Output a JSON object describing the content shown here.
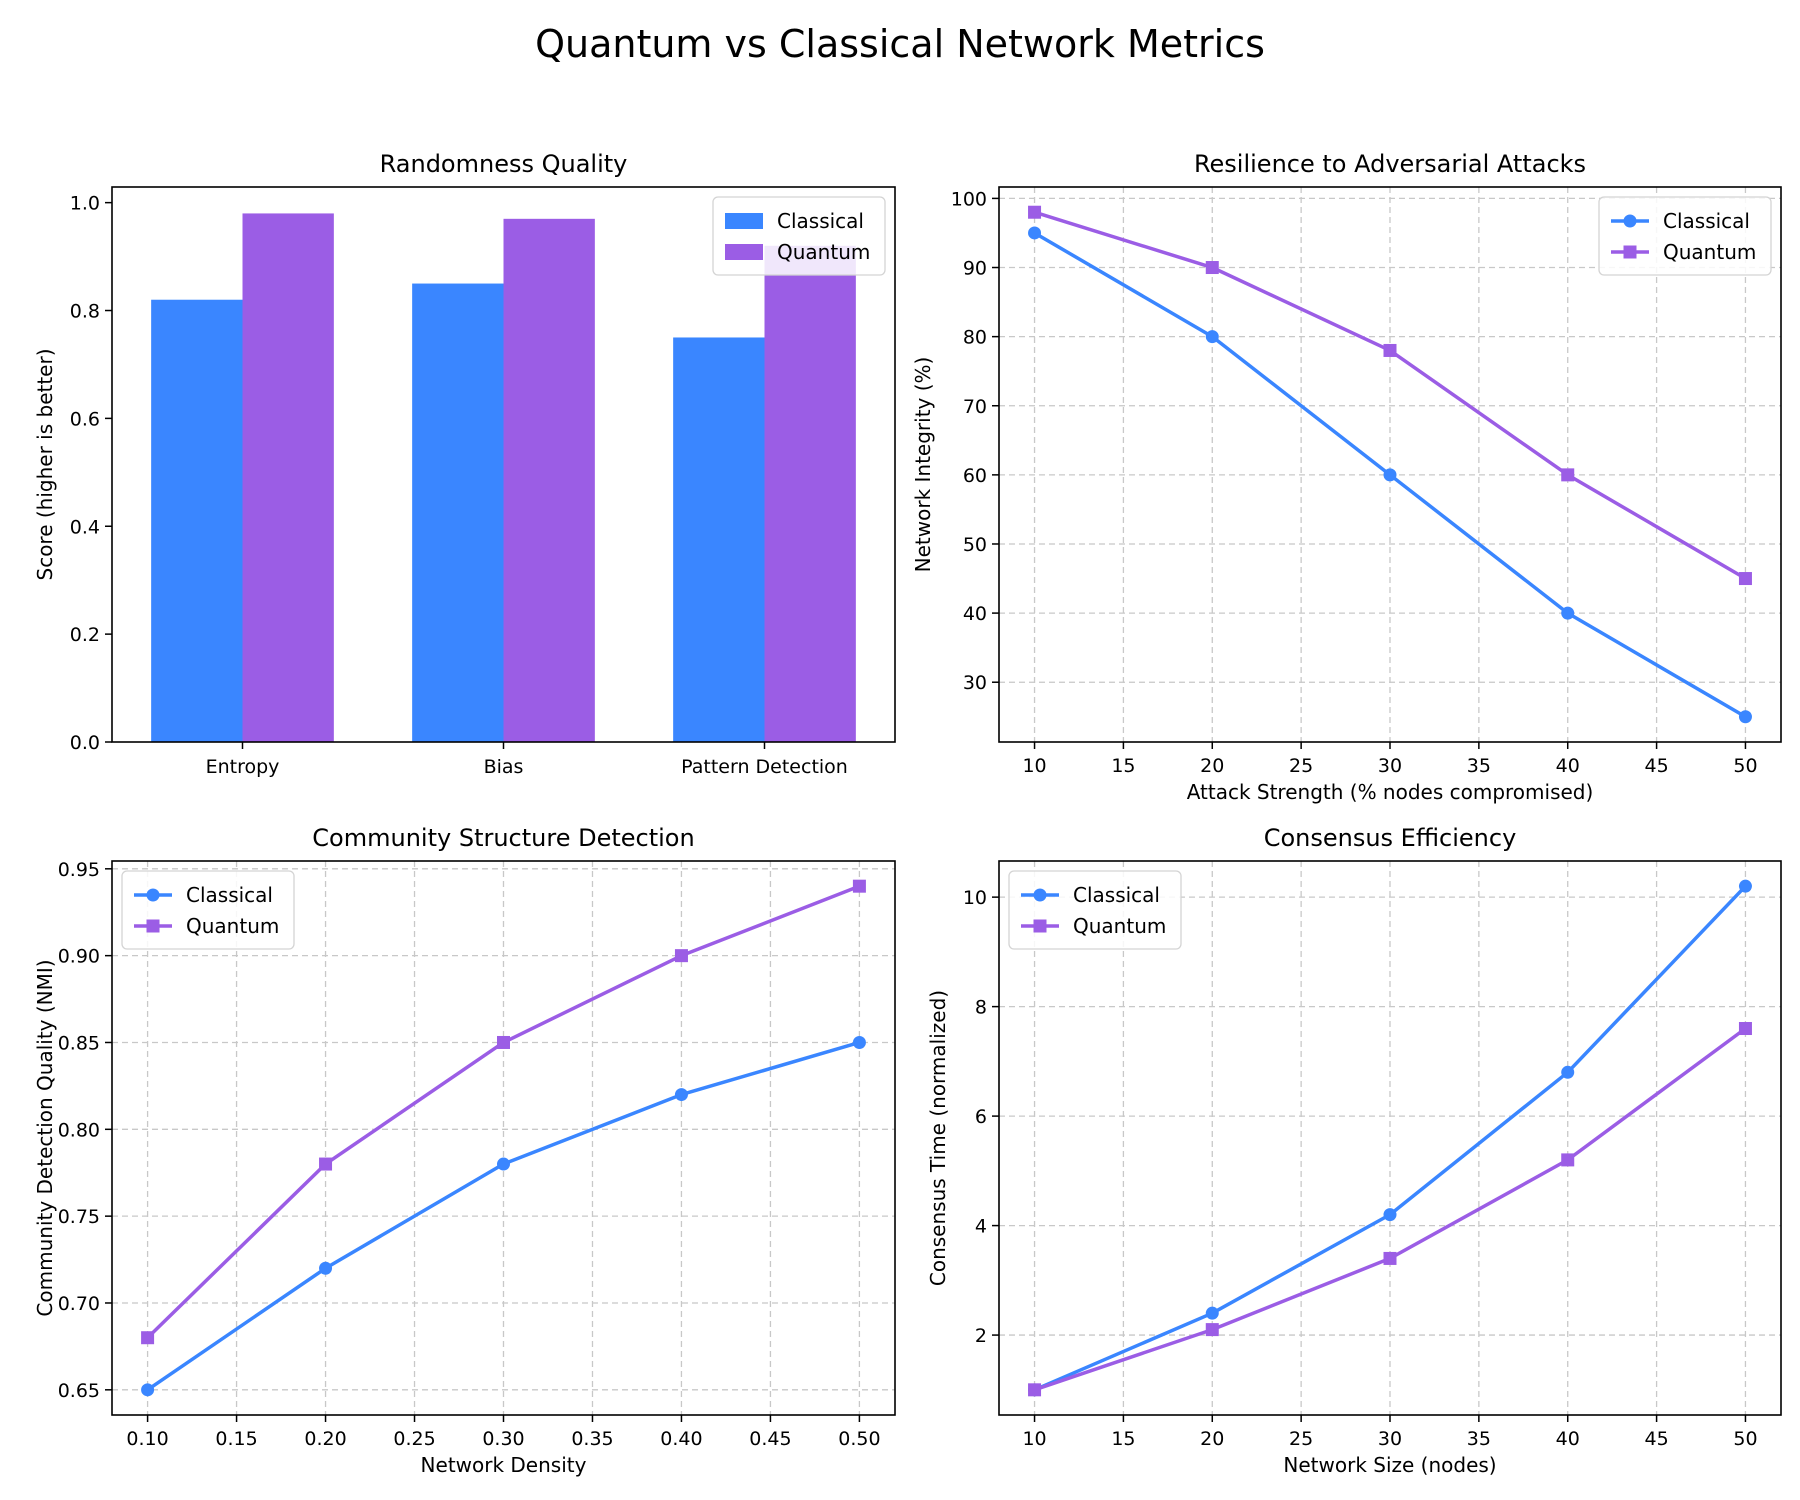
{
  "figure": {
    "title": "Quantum vs Classical Network Metrics"
  },
  "colors": {
    "classical": "#3a86ff",
    "quantum": "#9b5de5"
  },
  "chart_data": [
    {
      "id": "randomness",
      "type": "bar",
      "title": "Randomness Quality",
      "xlabel": "",
      "ylabel": "Score (higher is better)",
      "categories": [
        "Entropy",
        "Bias",
        "Pattern Detection"
      ],
      "series": [
        {
          "name": "Classical",
          "values": [
            0.82,
            0.85,
            0.75
          ]
        },
        {
          "name": "Quantum",
          "values": [
            0.98,
            0.97,
            0.92
          ]
        }
      ],
      "ylim": [
        0,
        1.029
      ],
      "yticks": [
        0.0,
        0.2,
        0.4,
        0.6,
        0.8,
        1.0
      ],
      "ytick_decimals": 1,
      "grid": false,
      "legend": "top-right"
    },
    {
      "id": "resilience",
      "type": "line",
      "title": "Resilience to Adversarial Attacks",
      "xlabel": "Attack Strength (% nodes compromised)",
      "ylabel": "Network Integrity (%)",
      "x": [
        10,
        20,
        30,
        40,
        50
      ],
      "series": [
        {
          "name": "Classical",
          "values": [
            95,
            80,
            60,
            40,
            25
          ]
        },
        {
          "name": "Quantum",
          "values": [
            98,
            90,
            78,
            60,
            45
          ]
        }
      ],
      "xlim": [
        8,
        52
      ],
      "ylim": [
        21.35,
        101.65
      ],
      "xticks": [
        10,
        15,
        20,
        25,
        30,
        35,
        40,
        45,
        50
      ],
      "yticks": [
        30,
        40,
        50,
        60,
        70,
        80,
        90,
        100
      ],
      "xtick_decimals": 0,
      "ytick_decimals": 0,
      "grid": true,
      "legend": "top-right"
    },
    {
      "id": "community",
      "type": "line",
      "title": "Community Structure Detection",
      "xlabel": "Network Density",
      "ylabel": "Community Detection Quality (NMI)",
      "x": [
        0.1,
        0.2,
        0.3,
        0.4,
        0.5
      ],
      "series": [
        {
          "name": "Classical",
          "values": [
            0.65,
            0.72,
            0.78,
            0.82,
            0.85
          ]
        },
        {
          "name": "Quantum",
          "values": [
            0.68,
            0.78,
            0.85,
            0.9,
            0.94
          ]
        }
      ],
      "xlim": [
        0.08,
        0.52
      ],
      "ylim": [
        0.6355,
        0.9545
      ],
      "xticks": [
        0.1,
        0.15,
        0.2,
        0.25,
        0.3,
        0.35,
        0.4,
        0.45,
        0.5
      ],
      "yticks": [
        0.65,
        0.7,
        0.75,
        0.8,
        0.85,
        0.9,
        0.95
      ],
      "xtick_decimals": 2,
      "ytick_decimals": 2,
      "grid": true,
      "legend": "top-left"
    },
    {
      "id": "consensus",
      "type": "line",
      "title": "Consensus Efficiency",
      "xlabel": "Network Size (nodes)",
      "ylabel": "Consensus Time (normalized)",
      "x": [
        10,
        20,
        30,
        40,
        50
      ],
      "series": [
        {
          "name": "Classical",
          "values": [
            1.0,
            2.4,
            4.2,
            6.8,
            10.2
          ]
        },
        {
          "name": "Quantum",
          "values": [
            1.0,
            2.1,
            3.4,
            5.2,
            7.6
          ]
        }
      ],
      "xlim": [
        8,
        52
      ],
      "ylim": [
        0.54,
        10.66
      ],
      "xticks": [
        10,
        15,
        20,
        25,
        30,
        35,
        40,
        45,
        50
      ],
      "yticks": [
        2,
        4,
        6,
        8,
        10
      ],
      "xtick_decimals": 0,
      "ytick_decimals": 0,
      "grid": true,
      "legend": "top-left"
    }
  ]
}
